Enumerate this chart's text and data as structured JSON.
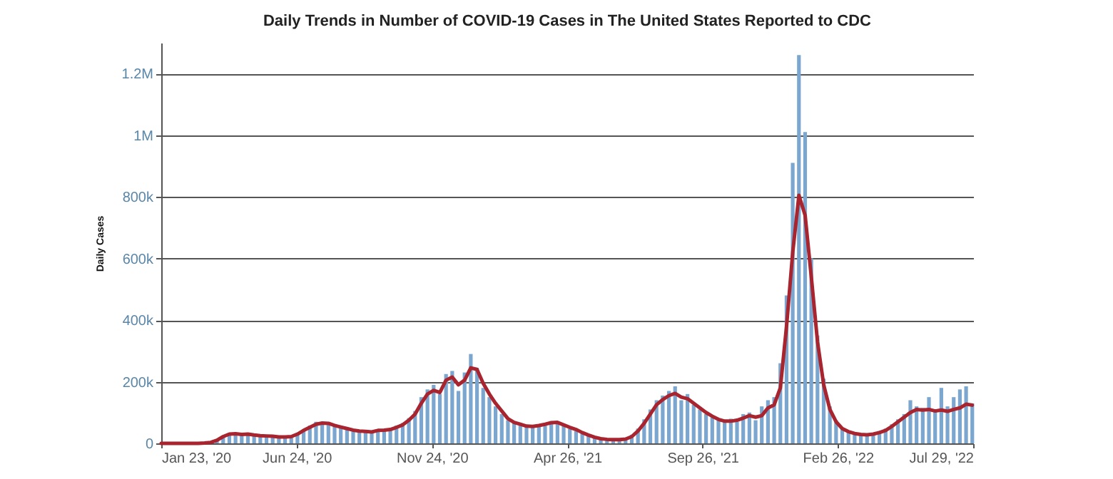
{
  "chart_data": {
    "type": "bar",
    "title": "Daily Trends in Number of COVID-19 Cases in The United States Reported to CDC",
    "ylabel": "Daily Cases",
    "x": [
      "2020-01-23",
      "2020-01-30",
      "2020-02-06",
      "2020-02-13",
      "2020-02-20",
      "2020-02-27",
      "2020-03-05",
      "2020-03-12",
      "2020-03-19",
      "2020-03-26",
      "2020-04-02",
      "2020-04-09",
      "2020-04-16",
      "2020-04-23",
      "2020-04-30",
      "2020-05-07",
      "2020-05-14",
      "2020-05-21",
      "2020-05-28",
      "2020-06-04",
      "2020-06-11",
      "2020-06-18",
      "2020-06-25",
      "2020-07-02",
      "2020-07-09",
      "2020-07-16",
      "2020-07-23",
      "2020-07-30",
      "2020-08-06",
      "2020-08-13",
      "2020-08-20",
      "2020-08-27",
      "2020-09-03",
      "2020-09-10",
      "2020-09-17",
      "2020-09-24",
      "2020-10-01",
      "2020-10-08",
      "2020-10-15",
      "2020-10-22",
      "2020-10-29",
      "2020-11-05",
      "2020-11-12",
      "2020-11-19",
      "2020-11-26",
      "2020-12-03",
      "2020-12-10",
      "2020-12-17",
      "2020-12-24",
      "2020-12-31",
      "2021-01-07",
      "2021-01-14",
      "2021-01-21",
      "2021-01-28",
      "2021-02-04",
      "2021-02-11",
      "2021-02-18",
      "2021-02-25",
      "2021-03-04",
      "2021-03-11",
      "2021-03-18",
      "2021-03-25",
      "2021-04-01",
      "2021-04-08",
      "2021-04-15",
      "2021-04-22",
      "2021-04-29",
      "2021-05-06",
      "2021-05-13",
      "2021-05-20",
      "2021-05-27",
      "2021-06-03",
      "2021-06-10",
      "2021-06-17",
      "2021-06-24",
      "2021-07-01",
      "2021-07-08",
      "2021-07-15",
      "2021-07-22",
      "2021-07-29",
      "2021-08-05",
      "2021-08-12",
      "2021-08-19",
      "2021-08-26",
      "2021-09-02",
      "2021-09-09",
      "2021-09-16",
      "2021-09-23",
      "2021-09-30",
      "2021-10-07",
      "2021-10-14",
      "2021-10-21",
      "2021-10-28",
      "2021-11-04",
      "2021-11-11",
      "2021-11-18",
      "2021-11-25",
      "2021-12-02",
      "2021-12-09",
      "2021-12-16",
      "2021-12-23",
      "2021-12-30",
      "2022-01-06",
      "2022-01-13",
      "2022-01-20",
      "2022-01-27",
      "2022-02-03",
      "2022-02-10",
      "2022-02-17",
      "2022-02-24",
      "2022-03-03",
      "2022-03-10",
      "2022-03-17",
      "2022-03-24",
      "2022-03-31",
      "2022-04-07",
      "2022-04-14",
      "2022-04-21",
      "2022-04-28",
      "2022-05-05",
      "2022-05-12",
      "2022-05-19",
      "2022-05-26",
      "2022-06-02",
      "2022-06-09",
      "2022-06-16",
      "2022-06-23",
      "2022-06-30",
      "2022-07-07",
      "2022-07-14",
      "2022-07-21",
      "2022-07-28"
    ],
    "series": [
      {
        "type": "bar",
        "color": "#7aa6cf",
        "values": [
          0,
          0,
          0,
          0,
          0,
          0,
          0,
          1000,
          4000,
          12000,
          25000,
          33000,
          30000,
          31000,
          28000,
          26000,
          24000,
          26000,
          22000,
          20000,
          23000,
          25000,
          34000,
          46000,
          58000,
          70000,
          68000,
          62000,
          55000,
          50000,
          45000,
          41000,
          42000,
          36000,
          40000,
          44000,
          41000,
          48000,
          58000,
          66000,
          82000,
          105000,
          150000,
          175000,
          190000,
          160000,
          225000,
          235000,
          170000,
          230000,
          290000,
          245000,
          180000,
          150000,
          120000,
          95000,
          75000,
          70000,
          58000,
          60000,
          52000,
          62000,
          65000,
          72000,
          66000,
          58000,
          48000,
          40000,
          33000,
          25000,
          18000,
          14000,
          12000,
          11000,
          13000,
          16000,
          28000,
          48000,
          78000,
          110000,
          140000,
          155000,
          170000,
          185000,
          140000,
          160000,
          125000,
          110000,
          95000,
          85000,
          75000,
          68000,
          80000,
          70000,
          95000,
          100000,
          75000,
          120000,
          140000,
          150000,
          260000,
          480000,
          910000,
          1260000,
          1010000,
          600000,
          350000,
          210000,
          120000,
          75000,
          50000,
          40000,
          35000,
          31000,
          30000,
          33000,
          40000,
          48000,
          62000,
          78000,
          95000,
          140000,
          120000,
          115000,
          150000,
          110000,
          180000,
          120000,
          150000,
          175000,
          185000,
          130000
        ]
      },
      {
        "type": "line",
        "color": "#a8242e",
        "values": [
          0,
          0,
          0,
          0,
          0,
          0,
          0,
          1000,
          3000,
          10000,
          22000,
          30000,
          31000,
          29000,
          30000,
          27000,
          25000,
          24000,
          23000,
          21000,
          21000,
          22000,
          30000,
          42000,
          52000,
          62000,
          66000,
          65000,
          58000,
          53000,
          48000,
          43000,
          40000,
          39000,
          37000,
          42000,
          43000,
          45000,
          52000,
          60000,
          75000,
          95000,
          130000,
          160000,
          172000,
          165000,
          205000,
          215000,
          190000,
          205000,
          245000,
          240000,
          195000,
          160000,
          130000,
          105000,
          80000,
          68000,
          62000,
          56000,
          55000,
          58000,
          62000,
          67000,
          68000,
          60000,
          52000,
          45000,
          35000,
          27000,
          20000,
          15000,
          13000,
          12000,
          12000,
          14000,
          22000,
          40000,
          65000,
          95000,
          125000,
          142000,
          155000,
          162000,
          150000,
          145000,
          130000,
          115000,
          100000,
          88000,
          78000,
          72000,
          72000,
          75000,
          82000,
          90000,
          85000,
          90000,
          115000,
          125000,
          180000,
          380000,
          620000,
          805000,
          740000,
          540000,
          330000,
          190000,
          110000,
          70000,
          48000,
          38000,
          32000,
          29000,
          28000,
          30000,
          35000,
          42000,
          55000,
          70000,
          85000,
          100000,
          110000,
          108000,
          110000,
          105000,
          108000,
          104000,
          110000,
          115000,
          127000,
          124000
        ]
      }
    ],
    "xlim": [
      "2020-01-23",
      "2022-07-29"
    ],
    "xticks": [
      {
        "value": "2020-01-23",
        "label": "Jan 23, '20"
      },
      {
        "value": "2020-06-24",
        "label": "Jun 24, '20"
      },
      {
        "value": "2020-11-24",
        "label": "Nov 24, '20"
      },
      {
        "value": "2021-04-26",
        "label": "Apr 26, '21"
      },
      {
        "value": "2021-09-26",
        "label": "Sep 26, '21"
      },
      {
        "value": "2022-02-26",
        "label": "Feb 26, '22"
      },
      {
        "value": "2022-07-29",
        "label": "Jul 29, '22"
      }
    ],
    "ylim": [
      0,
      1300000
    ],
    "yticks": [
      0,
      {
        "value": 200000,
        "label": "200k"
      },
      {
        "value": 400000,
        "label": "400k"
      },
      {
        "value": 600000,
        "label": "600k"
      },
      {
        "value": 800000,
        "label": "800k"
      },
      {
        "value": 1000000,
        "label": "1M"
      },
      {
        "value": 1200000,
        "label": "1.2M"
      }
    ],
    "grid": "y"
  }
}
